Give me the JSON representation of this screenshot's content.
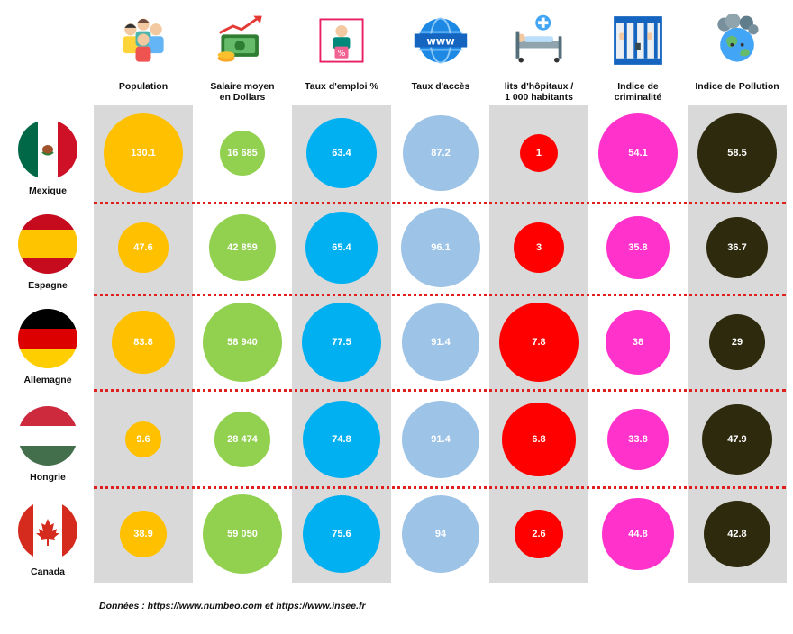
{
  "chart_data": {
    "type": "bubble-table",
    "columns": [
      {
        "key": "population",
        "label_lines": [
          "Population"
        ],
        "icon": "people-icon",
        "color": "#ffc000",
        "text_color": "#ffffff"
      },
      {
        "key": "salaire",
        "label_lines": [
          "Salaire moyen",
          "en Dollars"
        ],
        "icon": "money-growth-icon",
        "color": "#92d050",
        "text_color": "#ffffff"
      },
      {
        "key": "emploi",
        "label_lines": [
          "Taux d'emploi %"
        ],
        "icon": "employment-icon",
        "color": "#00b0f0",
        "text_color": "#ffffff"
      },
      {
        "key": "acces",
        "label_lines": [
          "Taux d'accès"
        ],
        "icon": "globe-www-icon",
        "color": "#9dc3e6",
        "text_color": "#ffffff"
      },
      {
        "key": "lits",
        "label_lines": [
          "lits d'hôpitaux /",
          "1 000 habitants"
        ],
        "icon": "hospital-bed-icon",
        "color": "#ff0000",
        "text_color": "#ffffff"
      },
      {
        "key": "crime",
        "label_lines": [
          "Indice de",
          "criminalité"
        ],
        "icon": "prison-bars-icon",
        "color": "#ff33cc",
        "text_color": "#ffffff"
      },
      {
        "key": "pollution",
        "label_lines": [
          "Indice de Pollution"
        ],
        "icon": "polluted-earth-icon",
        "color": "#2e2a0d",
        "text_color": "#ffffff"
      }
    ],
    "rows": [
      {
        "country": "Mexique",
        "flag": "mexico-flag-icon",
        "labels": [
          "130.1",
          "16 685",
          "63.4",
          "87.2",
          "1",
          "54.1",
          "58.5"
        ],
        "values": [
          130.1,
          16685,
          63.4,
          87.2,
          1,
          54.1,
          58.5
        ]
      },
      {
        "country": "Espagne",
        "flag": "spain-flag-icon",
        "labels": [
          "47.6",
          "42 859",
          "65.4",
          "96.1",
          "3",
          "35.8",
          "36.7"
        ],
        "values": [
          47.6,
          42859,
          65.4,
          96.1,
          3,
          35.8,
          36.7
        ]
      },
      {
        "country": "Allemagne",
        "flag": "germany-flag-icon",
        "labels": [
          "83.8",
          "58 940",
          "77.5",
          "91.4",
          "7.8",
          "38",
          "29"
        ],
        "values": [
          83.8,
          58940,
          77.5,
          91.4,
          7.8,
          38,
          29
        ]
      },
      {
        "country": "Hongrie",
        "flag": "hungary-flag-icon",
        "labels": [
          "9.6",
          "28 474",
          "74.8",
          "91.4",
          "6.8",
          "33.8",
          "47.9"
        ],
        "values": [
          9.6,
          28474,
          74.8,
          91.4,
          6.8,
          33.8,
          47.9
        ]
      },
      {
        "country": "Canada",
        "flag": "canada-flag-icon",
        "labels": [
          "38.9",
          "59 050",
          "75.6",
          "94",
          "2.6",
          "44.8",
          "42.8"
        ],
        "values": [
          38.9,
          59050,
          75.6,
          94,
          2.6,
          44.8,
          42.8
        ]
      }
    ],
    "source_note": "Données : https://www.numbeo.com et https://www.insee.fr"
  }
}
